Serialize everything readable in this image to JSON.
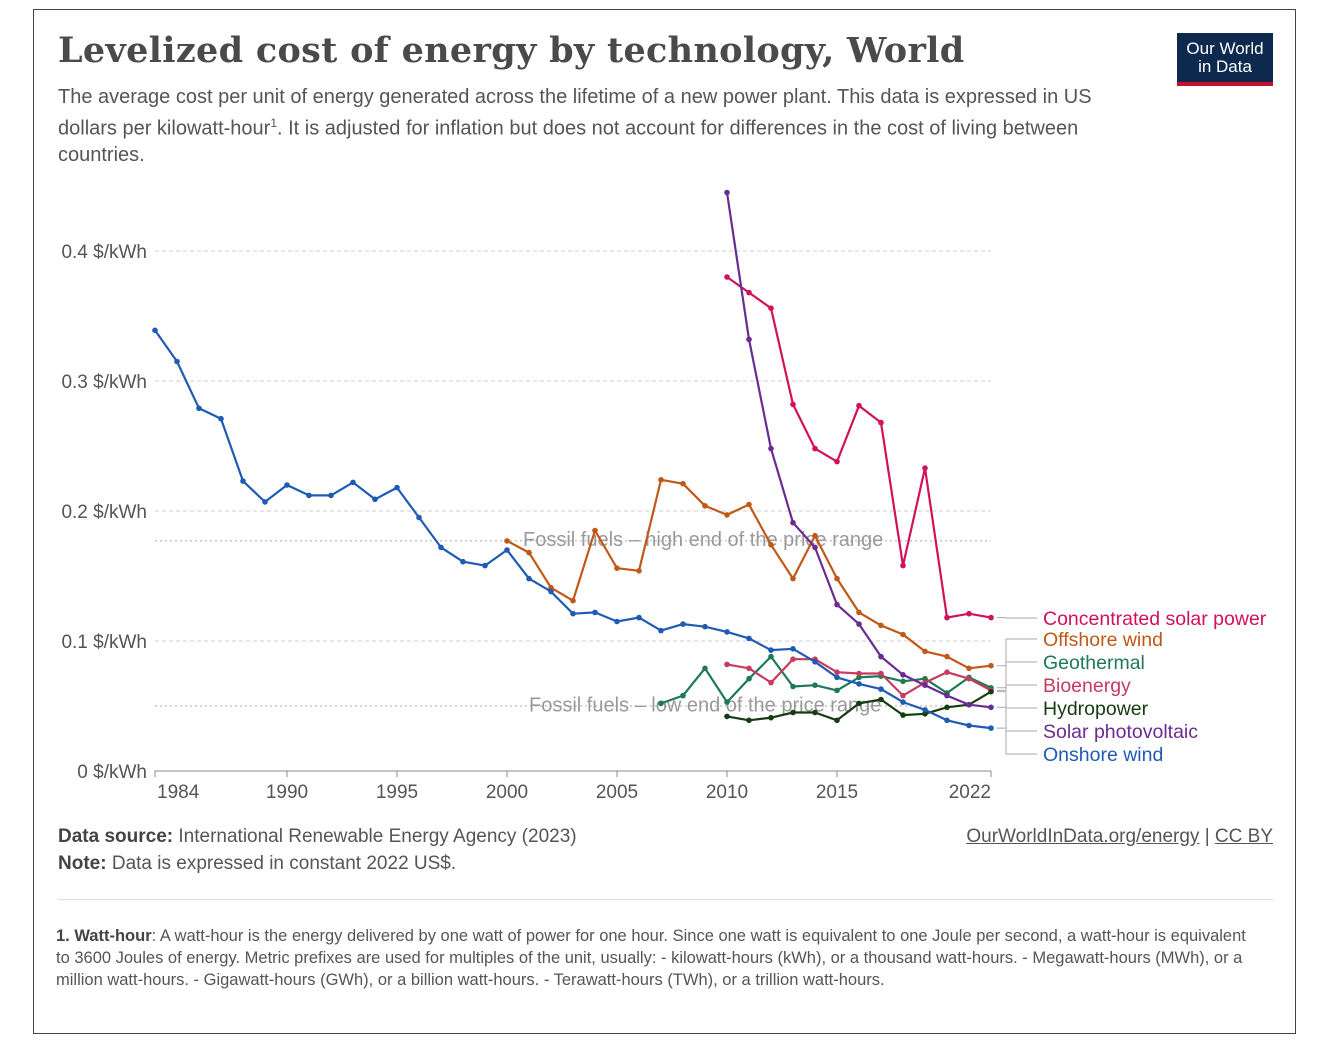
{
  "header": {
    "title": "Levelized cost of energy by technology, World",
    "subtitle_before": "The average cost per unit of energy generated across the lifetime of a new power plant. This data is expressed in US dollars per kilowatt-hour",
    "subtitle_sup": "1",
    "subtitle_after": ". It is adjusted for inflation but does not account for differences in the cost of living between countries.",
    "logo_line1": "Our World",
    "logo_line2": "in Data"
  },
  "footer": {
    "source_label": "Data source:",
    "source_text": " International Renewable Energy Agency (2023)",
    "note_label": "Note:",
    "note_text": " Data is expressed in constant 2022 US$.",
    "link": "OurWorldInData.org/energy",
    "separator": " | ",
    "license": "CC BY",
    "footnote_label": "1. Watt-hour",
    "footnote_text": ": A watt-hour is the energy delivered by one watt of power for one hour. Since one watt is equivalent to one Joule per second, a watt-hour is equivalent to 3600 Joules of energy. Metric prefixes are used for multiples of the unit, usually: - kilowatt-hours (kWh), or a thousand watt-hours. - Megawatt-hours (MWh), or a million watt-hours. - Gigawatt-hours (GWh), or a billion watt-hours. - Terawatt-hours (TWh), or a trillion watt-hours."
  },
  "chart_data": {
    "type": "line",
    "title": "Levelized cost of energy by technology, World",
    "xlim": [
      1984,
      2022
    ],
    "ylim": [
      0,
      0.45
    ],
    "x_ticks": [
      1984,
      1990,
      1995,
      2000,
      2005,
      2010,
      2015,
      2022
    ],
    "y_ticks": [
      0,
      0.1,
      0.2,
      0.3,
      0.4
    ],
    "y_tick_labels": [
      "0 $/kWh",
      "0.1 $/kWh",
      "0.2 $/kWh",
      "0.3 $/kWh",
      "0.4 $/kWh"
    ],
    "grid": "horizontal dashed",
    "legend": "right (line-end labels)",
    "reference_lines": [
      {
        "label": "Fossil fuels – high end of the price range",
        "value": 0.177,
        "label_start_year": 2001
      },
      {
        "label": "Fossil fuels – low end of the price range",
        "value": 0.05,
        "label_start_year": 2001
      }
    ],
    "series": [
      {
        "name": "Concentrated solar power",
        "color": "#d1115a",
        "x": [
          2010,
          2011,
          2012,
          2013,
          2014,
          2015,
          2016,
          2017,
          2018,
          2019,
          2020,
          2021,
          2022
        ],
        "y": [
          0.38,
          0.368,
          0.356,
          0.282,
          0.248,
          0.238,
          0.281,
          0.268,
          0.158,
          0.233,
          0.118,
          0.121,
          0.118
        ]
      },
      {
        "name": "Offshore wind",
        "color": "#c05917",
        "x": [
          2000,
          2001,
          2002,
          2003,
          2004,
          2005,
          2006,
          2007,
          2008,
          2009,
          2010,
          2011,
          2012,
          2013,
          2014,
          2015,
          2016,
          2017,
          2018,
          2019,
          2020,
          2021,
          2022
        ],
        "y": [
          0.177,
          0.168,
          0.141,
          0.131,
          0.185,
          0.156,
          0.154,
          0.224,
          0.221,
          0.204,
          0.197,
          0.205,
          0.174,
          0.148,
          0.181,
          0.148,
          0.122,
          0.112,
          0.105,
          0.092,
          0.088,
          0.079,
          0.081
        ]
      },
      {
        "name": "Geothermal",
        "color": "#1d7a54",
        "x": [
          2007,
          2008,
          2009,
          2010,
          2011,
          2012,
          2013,
          2014,
          2015,
          2016,
          2017,
          2018,
          2019,
          2020,
          2021,
          2022
        ],
        "y": [
          0.052,
          0.058,
          0.079,
          0.053,
          0.071,
          0.088,
          0.065,
          0.066,
          0.062,
          0.072,
          0.073,
          0.069,
          0.071,
          0.06,
          0.072,
          0.064
        ]
      },
      {
        "name": "Bioenergy",
        "color": "#c83a5e",
        "x": [
          2010,
          2011,
          2012,
          2013,
          2014,
          2015,
          2016,
          2017,
          2018,
          2019,
          2020,
          2021,
          2022
        ],
        "y": [
          0.082,
          0.079,
          0.068,
          0.086,
          0.086,
          0.076,
          0.075,
          0.075,
          0.058,
          0.068,
          0.076,
          0.071,
          0.062
        ]
      },
      {
        "name": "Hydropower",
        "color": "#163d12",
        "x": [
          2010,
          2011,
          2012,
          2013,
          2014,
          2015,
          2016,
          2017,
          2018,
          2019,
          2020,
          2021,
          2022
        ],
        "y": [
          0.042,
          0.039,
          0.041,
          0.045,
          0.045,
          0.039,
          0.052,
          0.055,
          0.043,
          0.044,
          0.049,
          0.051,
          0.061
        ]
      },
      {
        "name": "Solar photovoltaic",
        "color": "#6a2c91",
        "x": [
          2010,
          2011,
          2012,
          2013,
          2014,
          2015,
          2016,
          2017,
          2018,
          2019,
          2020,
          2021,
          2022
        ],
        "y": [
          0.445,
          0.332,
          0.248,
          0.191,
          0.172,
          0.128,
          0.113,
          0.088,
          0.074,
          0.066,
          0.058,
          0.051,
          0.049
        ]
      },
      {
        "name": "Onshore wind",
        "color": "#1f5bb5",
        "x": [
          1984,
          1985,
          1986,
          1987,
          1988,
          1989,
          1990,
          1991,
          1992,
          1993,
          1994,
          1995,
          1996,
          1997,
          1998,
          1999,
          2000,
          2001,
          2002,
          2003,
          2004,
          2005,
          2006,
          2007,
          2008,
          2009,
          2010,
          2011,
          2012,
          2013,
          2014,
          2015,
          2016,
          2017,
          2018,
          2019,
          2020,
          2021,
          2022
        ],
        "y": [
          0.339,
          0.315,
          0.279,
          0.271,
          0.223,
          0.207,
          0.22,
          0.212,
          0.212,
          0.222,
          0.209,
          0.218,
          0.195,
          0.172,
          0.161,
          0.158,
          0.17,
          0.148,
          0.138,
          0.121,
          0.122,
          0.115,
          0.118,
          0.108,
          0.113,
          0.111,
          0.107,
          0.102,
          0.093,
          0.094,
          0.084,
          0.072,
          0.067,
          0.063,
          0.053,
          0.047,
          0.039,
          0.035,
          0.033
        ]
      }
    ]
  }
}
